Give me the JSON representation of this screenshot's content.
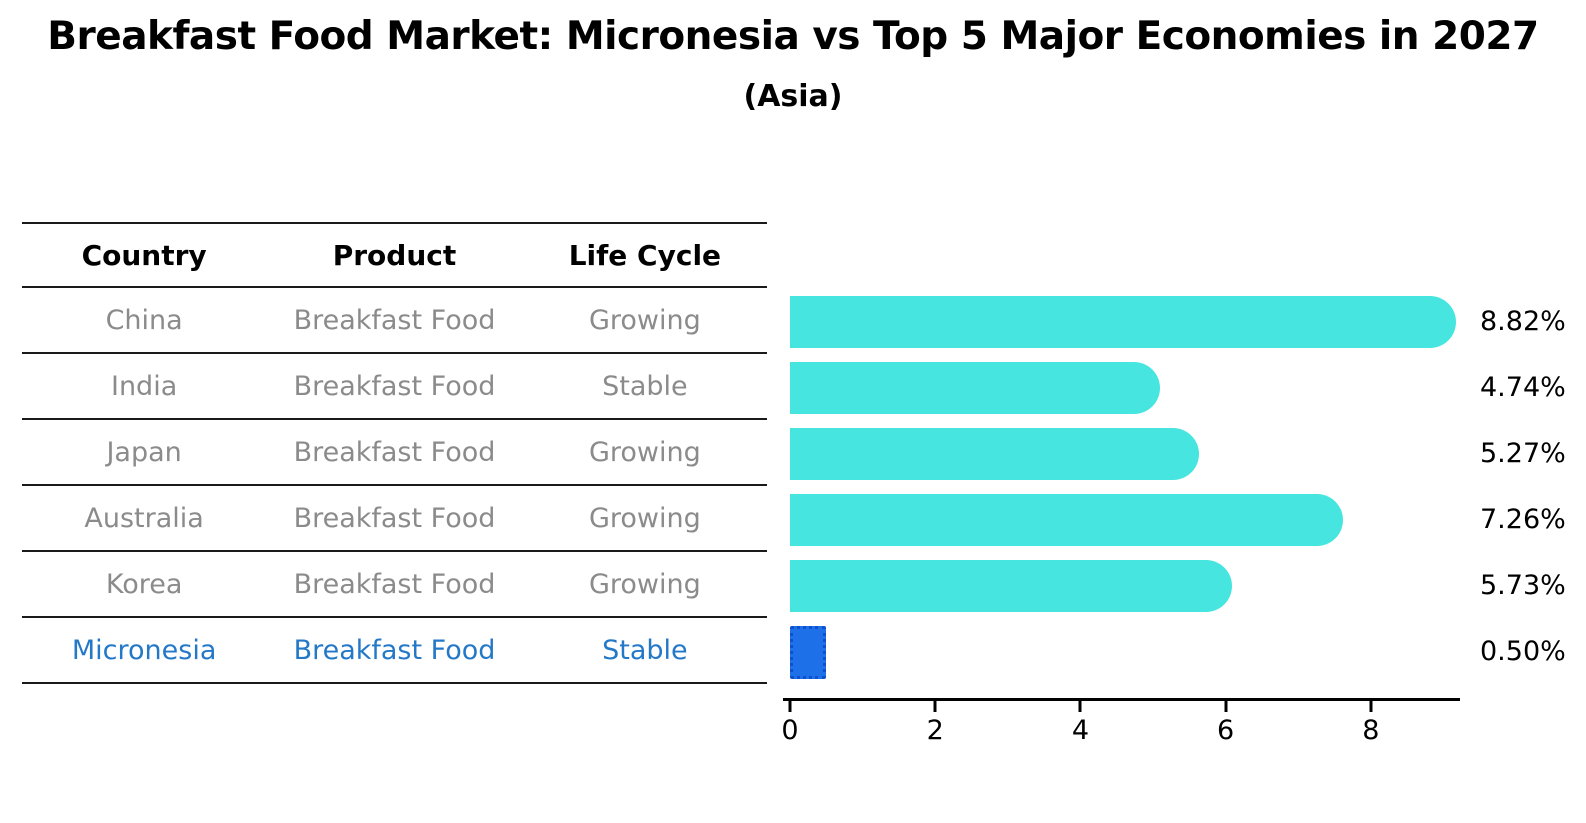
{
  "header": {
    "title": "Breakfast Food Market: Micronesia vs Top 5 Major Economies in 2027",
    "subtitle": "(Asia)"
  },
  "table": {
    "columns": [
      "Country",
      "Product",
      "Life Cycle"
    ]
  },
  "chart_data": {
    "type": "bar",
    "orientation": "horizontal",
    "title": "Breakfast Food Market: Micronesia vs Top 5 Major Economies in 2027",
    "subtitle": "(Asia)",
    "xlim": [
      0,
      9.2
    ],
    "xticks": [
      0,
      2,
      4,
      6,
      8
    ],
    "grid": false,
    "legend": false,
    "rows": [
      {
        "country": "China",
        "product": "Breakfast Food",
        "life_cycle": "Growing",
        "value": 8.82,
        "value_label": "8.82%",
        "highlight": false
      },
      {
        "country": "India",
        "product": "Breakfast Food",
        "life_cycle": "Stable",
        "value": 4.74,
        "value_label": "4.74%",
        "highlight": false
      },
      {
        "country": "Japan",
        "product": "Breakfast Food",
        "life_cycle": "Growing",
        "value": 5.27,
        "value_label": "5.27%",
        "highlight": false
      },
      {
        "country": "Australia",
        "product": "Breakfast Food",
        "life_cycle": "Growing",
        "value": 7.26,
        "value_label": "7.26%",
        "highlight": false
      },
      {
        "country": "Korea",
        "product": "Breakfast Food",
        "life_cycle": "Growing",
        "value": 5.73,
        "value_label": "5.73%",
        "highlight": false
      },
      {
        "country": "Micronesia",
        "product": "Breakfast Food",
        "life_cycle": "Stable",
        "value": 0.5,
        "value_label": "0.50%",
        "highlight": true
      }
    ],
    "colors": {
      "bar": "#46e5e0",
      "highlight_bar": "#1e70e8",
      "highlight_border": "#0d51d0",
      "highlight_text": "#2478c8",
      "row_text": "#8b8b8b",
      "axis": "#000000"
    }
  }
}
